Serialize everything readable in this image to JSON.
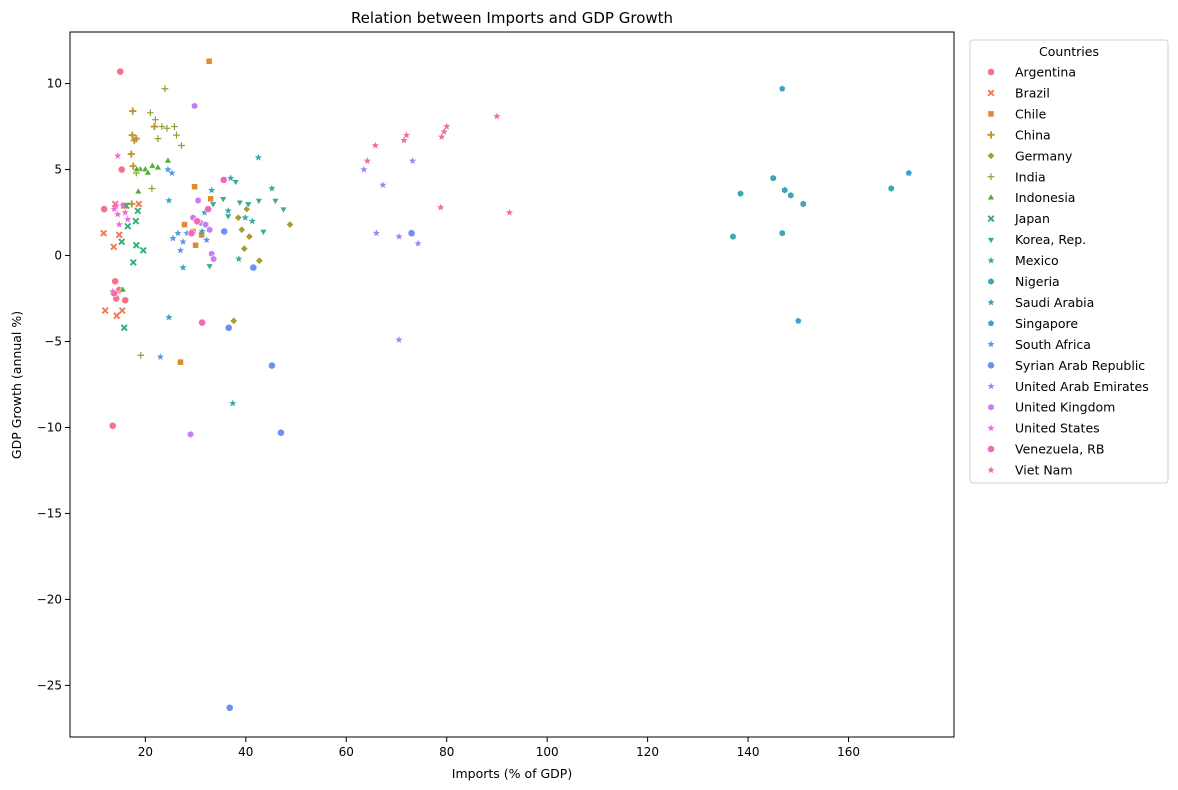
{
  "chart_data": {
    "type": "scatter",
    "title": "Relation between Imports and GDP Growth",
    "xlabel": "Imports (% of GDP)",
    "ylabel": "GDP Growth (annual %)",
    "xlim": [
      5,
      181
    ],
    "ylim": [
      -28,
      13
    ],
    "xticks": [
      20,
      40,
      60,
      80,
      100,
      120,
      140,
      160
    ],
    "yticks": [
      10,
      5,
      0,
      -5,
      -10,
      -15,
      -20,
      -25
    ],
    "legend_title": "Countries",
    "legend_position": "upper right, outside plot",
    "grid": false,
    "series": [
      {
        "name": "Argentina",
        "color": "#f77189",
        "marker": "circle",
        "points": [
          [
            15,
            10.7
          ],
          [
            15.3,
            5
          ],
          [
            11.8,
            2.7
          ],
          [
            13.5,
            -9.9
          ],
          [
            14,
            -1.5
          ],
          [
            14.2,
            -2.5
          ],
          [
            16,
            -2.6
          ],
          [
            14.8,
            -2
          ],
          [
            13.8,
            -2.2
          ]
        ]
      },
      {
        "name": "Brazil",
        "color": "#f7754f",
        "marker": "x",
        "points": [
          [
            11.7,
            1.3
          ],
          [
            12,
            -3.2
          ],
          [
            13.7,
            0.5
          ],
          [
            14,
            3
          ],
          [
            14.3,
            -3.5
          ],
          [
            14.8,
            1.2
          ],
          [
            15.4,
            -3.2
          ],
          [
            15.8,
            2.9
          ],
          [
            18.7,
            3
          ]
        ]
      },
      {
        "name": "Chile",
        "color": "#dd8a30",
        "marker": "square",
        "points": [
          [
            32.7,
            11.3
          ],
          [
            29.8,
            4
          ],
          [
            33,
            3.3
          ],
          [
            27.8,
            1.8
          ],
          [
            29.5,
            1.4
          ],
          [
            30,
            0.6
          ],
          [
            27,
            -6.2
          ],
          [
            31.2,
            1.2
          ]
        ]
      },
      {
        "name": "China",
        "color": "#c39532",
        "marker": "plus",
        "points": [
          [
            17.5,
            8.4
          ],
          [
            17.4,
            7
          ],
          [
            17.8,
            6.7
          ],
          [
            18.2,
            6.8
          ],
          [
            17.2,
            5.9
          ],
          [
            17.6,
            5.2
          ],
          [
            21.8,
            7.5
          ],
          [
            17.3,
            3
          ]
        ]
      },
      {
        "name": "Germany",
        "color": "#a79c32",
        "marker": "diamond",
        "points": [
          [
            48.8,
            1.8
          ],
          [
            38.5,
            2.2
          ],
          [
            40.7,
            1.1
          ],
          [
            39.2,
            1.5
          ],
          [
            39.7,
            0.4
          ],
          [
            42.7,
            -0.3
          ],
          [
            37.6,
            -3.8
          ],
          [
            40.2,
            2.7
          ]
        ]
      },
      {
        "name": "India",
        "color": "#86a432",
        "marker": "plus-thin",
        "points": [
          [
            23.9,
            9.7
          ],
          [
            21,
            8.3
          ],
          [
            22,
            7.9
          ],
          [
            23.3,
            7.5
          ],
          [
            22.5,
            6.8
          ],
          [
            24.3,
            7.4
          ],
          [
            25.8,
            7.5
          ],
          [
            26.2,
            7
          ],
          [
            27.2,
            6.4
          ],
          [
            18.2,
            4.8
          ],
          [
            21.3,
            3.9
          ],
          [
            19.1,
            -5.8
          ]
        ]
      },
      {
        "name": "Indonesia",
        "color": "#50b032",
        "marker": "triangle-up",
        "points": [
          [
            24.5,
            5.5
          ],
          [
            21.4,
            5.2
          ],
          [
            19,
            5
          ],
          [
            20,
            5
          ],
          [
            22.5,
            5.1
          ],
          [
            18.6,
            3.7
          ],
          [
            15.5,
            -2
          ],
          [
            20.5,
            4.8
          ],
          [
            18.3,
            5
          ]
        ]
      },
      {
        "name": "Japan",
        "color": "#34ae73",
        "marker": "x",
        "points": [
          [
            16.5,
            1.7
          ],
          [
            18.1,
            2
          ],
          [
            18.5,
            2.6
          ],
          [
            16.2,
            2.9
          ],
          [
            17.6,
            -0.4
          ],
          [
            18.2,
            0.6
          ],
          [
            19.6,
            0.3
          ],
          [
            15.3,
            0.8
          ],
          [
            15.8,
            -4.2
          ]
        ]
      },
      {
        "name": "Korea, Rep.",
        "color": "#36ad8f",
        "marker": "triangle-down",
        "points": [
          [
            38,
            4.3
          ],
          [
            47.5,
            2.7
          ],
          [
            45.9,
            3.2
          ],
          [
            42.6,
            3.2
          ],
          [
            43.5,
            1.4
          ],
          [
            36.5,
            2.3
          ],
          [
            35.5,
            3.3
          ],
          [
            38.8,
            3.1
          ],
          [
            33.5,
            3
          ],
          [
            32.8,
            -0.6
          ],
          [
            40.5,
            3
          ]
        ]
      },
      {
        "name": "Mexico",
        "color": "#38aaa2",
        "marker": "star",
        "points": [
          [
            42.5,
            5.7
          ],
          [
            45.2,
            3.9
          ],
          [
            39.9,
            2.2
          ],
          [
            41.3,
            2
          ],
          [
            36.5,
            2.6
          ],
          [
            38.6,
            -0.2
          ],
          [
            37.4,
            -8.6
          ]
        ]
      },
      {
        "name": "Nigeria",
        "color": "#3aa7b2",
        "marker": "hexagon",
        "points": [
          [
            168.5,
            3.9
          ],
          [
            148.5,
            3.5
          ],
          [
            147.3,
            3.8
          ],
          [
            151,
            3
          ],
          [
            145,
            4.5
          ],
          [
            138.5,
            3.6
          ],
          [
            137,
            1.1
          ],
          [
            146.8,
            1.3
          ]
        ]
      },
      {
        "name": "Saudi Arabia",
        "color": "#3ba3c0",
        "marker": "star",
        "points": [
          [
            24.7,
            3.2
          ],
          [
            27.5,
            -0.7
          ],
          [
            33.2,
            3.8
          ],
          [
            24.7,
            -3.6
          ],
          [
            37,
            4.5
          ],
          [
            31.3,
            1.4
          ],
          [
            31.8,
            2.5
          ]
        ]
      },
      {
        "name": "Singapore",
        "color": "#3ea0d1",
        "marker": "pentagon",
        "points": [
          [
            146.8,
            9.7
          ],
          [
            172,
            4.8
          ],
          [
            150,
            -3.8
          ]
        ]
      },
      {
        "name": "South Africa",
        "color": "#5a98e6",
        "marker": "star",
        "points": [
          [
            24.5,
            5
          ],
          [
            25.3,
            4.8
          ],
          [
            25.5,
            1
          ],
          [
            26.5,
            1.3
          ],
          [
            27,
            0.3
          ],
          [
            27.5,
            0.8
          ],
          [
            28.3,
            1.3
          ],
          [
            30.5,
            2
          ],
          [
            32.2,
            0.9
          ],
          [
            23,
            -5.9
          ]
        ]
      },
      {
        "name": "Syrian Arab Republic",
        "color": "#6e8ff6",
        "marker": "circle",
        "points": [
          [
            73,
            1.3
          ],
          [
            41.5,
            -0.7
          ],
          [
            35.7,
            1.4
          ],
          [
            36.6,
            -4.2
          ],
          [
            45.2,
            -6.4
          ],
          [
            47,
            -10.3
          ],
          [
            36.8,
            -26.3
          ]
        ]
      },
      {
        "name": "United Arab Emirates",
        "color": "#a283f4",
        "marker": "star",
        "points": [
          [
            63.5,
            5
          ],
          [
            67.3,
            4.1
          ],
          [
            73.2,
            5.5
          ],
          [
            66,
            1.3
          ],
          [
            70.5,
            1.1
          ],
          [
            74.3,
            0.7
          ],
          [
            70.5,
            -4.9
          ]
        ]
      },
      {
        "name": "United Kingdom",
        "color": "#c77ef4",
        "marker": "hexagon",
        "points": [
          [
            29.8,
            8.7
          ],
          [
            30.5,
            3.2
          ],
          [
            29.5,
            2.2
          ],
          [
            31,
            1.9
          ],
          [
            32,
            1.8
          ],
          [
            32.8,
            1.5
          ],
          [
            33.2,
            0.1
          ],
          [
            33.6,
            -0.2
          ],
          [
            29,
            -10.4
          ]
        ]
      },
      {
        "name": "United States",
        "color": "#f069e0",
        "marker": "star",
        "points": [
          [
            14.5,
            5.8
          ],
          [
            13.8,
            2.7
          ],
          [
            14.5,
            2.4
          ],
          [
            15.5,
            2.9
          ],
          [
            16,
            2.5
          ],
          [
            16.5,
            2.1
          ],
          [
            14.8,
            1.8
          ],
          [
            13.5,
            -2.1
          ],
          [
            14.2,
            2.9
          ]
        ]
      },
      {
        "name": "Venezuela, RB",
        "color": "#f468b8",
        "marker": "circle",
        "points": [
          [
            35.6,
            4.4
          ],
          [
            31.3,
            -3.9
          ],
          [
            29.2,
            1.3
          ],
          [
            30.3,
            2
          ],
          [
            32.5,
            2.7
          ]
        ]
      },
      {
        "name": "Viet Nam",
        "color": "#f26d98",
        "marker": "star",
        "points": [
          [
            90,
            8.1
          ],
          [
            80,
            7.5
          ],
          [
            79.5,
            7.2
          ],
          [
            72,
            7
          ],
          [
            71.5,
            6.7
          ],
          [
            65.8,
            6.4
          ],
          [
            64.2,
            5.5
          ],
          [
            79,
            6.9
          ],
          [
            78.8,
            2.8
          ],
          [
            92.5,
            2.5
          ]
        ]
      }
    ]
  }
}
